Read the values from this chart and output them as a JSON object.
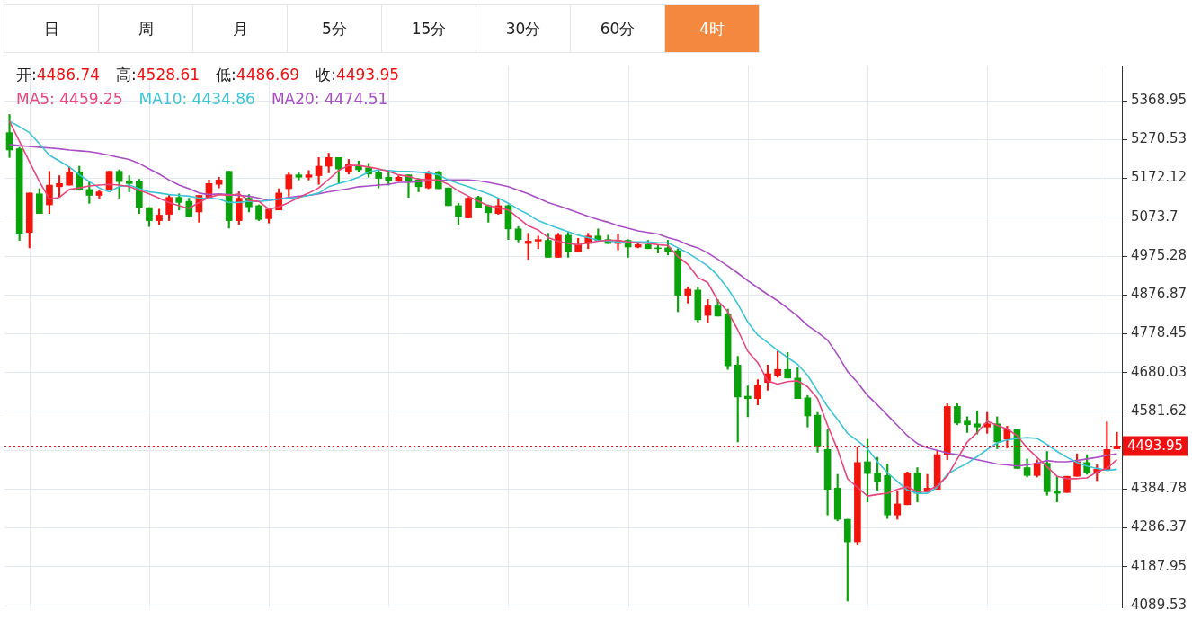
{
  "chart_data": {
    "type": "candlestick",
    "categories": [
      null,
      null,
      null,
      null,
      null,
      null,
      null,
      null,
      null,
      null,
      null,
      null,
      null,
      null,
      null,
      null,
      null,
      null,
      null,
      null,
      null,
      null,
      null,
      null,
      null,
      null,
      null,
      null,
      null,
      null,
      null,
      null,
      null,
      null,
      null,
      null,
      null,
      null,
      null,
      null,
      null,
      null,
      null,
      null,
      null,
      null,
      null,
      null,
      null,
      null,
      null,
      null,
      null,
      null,
      null,
      null,
      null,
      null,
      null,
      null,
      null,
      null,
      null,
      null,
      null,
      null,
      null,
      null,
      null,
      null,
      null,
      null,
      null,
      null,
      null,
      null,
      null,
      null,
      null,
      null,
      null,
      null,
      null,
      null,
      null,
      null,
      null,
      null,
      null,
      null,
      null,
      null,
      null,
      null,
      null,
      null,
      null,
      null,
      null,
      null,
      null,
      null,
      null,
      null,
      null,
      null,
      null,
      null,
      null,
      null,
      null,
      null
    ],
    "ohlc": [
      [
        5288,
        5334,
        5225,
        5244
      ],
      [
        5247,
        5251,
        5015,
        5033
      ],
      [
        5035,
        5135,
        4996,
        5135
      ],
      [
        5133,
        5146,
        5083,
        5083
      ],
      [
        5105,
        5190,
        5083,
        5155
      ],
      [
        5151,
        5179,
        5124,
        5159
      ],
      [
        5155,
        5201,
        5155,
        5188
      ],
      [
        5188,
        5203,
        5142,
        5142
      ],
      [
        5144,
        5164,
        5109,
        5129
      ],
      [
        5129,
        5142,
        5122,
        5138
      ],
      [
        5144,
        5190,
        5144,
        5190
      ],
      [
        5190,
        5194,
        5122,
        5164
      ],
      [
        5166,
        5179,
        5138,
        5159
      ],
      [
        5164,
        5170,
        5083,
        5098
      ],
      [
        5098,
        5098,
        5050,
        5065
      ],
      [
        5065,
        5094,
        5055,
        5079
      ],
      [
        5081,
        5131,
        5065,
        5124
      ],
      [
        5124,
        5133,
        5092,
        5111
      ],
      [
        5114,
        5122,
        5074,
        5076
      ],
      [
        5087,
        5129,
        5061,
        5129
      ],
      [
        5124,
        5168,
        5124,
        5159
      ],
      [
        5157,
        5175,
        5148,
        5168
      ],
      [
        5190,
        5190,
        5046,
        5065
      ],
      [
        5065,
        5138,
        5055,
        5122
      ],
      [
        5122,
        5131,
        5087,
        5100
      ],
      [
        5103,
        5105,
        5065,
        5068
      ],
      [
        5070,
        5094,
        5059,
        5094
      ],
      [
        5092,
        5146,
        5092,
        5135
      ],
      [
        5146,
        5186,
        5127,
        5181
      ],
      [
        5181,
        5186,
        5168,
        5175
      ],
      [
        5175,
        5192,
        5168,
        5181
      ],
      [
        5179,
        5225,
        5157,
        5203
      ],
      [
        5203,
        5236,
        5186,
        5225
      ],
      [
        5225,
        5225,
        5159,
        5196
      ],
      [
        5188,
        5220,
        5183,
        5207
      ],
      [
        5203,
        5216,
        5190,
        5194
      ],
      [
        5199,
        5210,
        5175,
        5183
      ],
      [
        5188,
        5192,
        5148,
        5172
      ],
      [
        5175,
        5192,
        5155,
        5166
      ],
      [
        5166,
        5179,
        5166,
        5175
      ],
      [
        5181,
        5181,
        5124,
        5164
      ],
      [
        5168,
        5172,
        5138,
        5151
      ],
      [
        5148,
        5190,
        5146,
        5186
      ],
      [
        5188,
        5190,
        5146,
        5146
      ],
      [
        5148,
        5148,
        5103,
        5103
      ],
      [
        5103,
        5109,
        5055,
        5076
      ],
      [
        5072,
        5124,
        5072,
        5122
      ],
      [
        5124,
        5127,
        5098,
        5098
      ],
      [
        5103,
        5105,
        5061,
        5085
      ],
      [
        5083,
        5120,
        5081,
        5103
      ],
      [
        5103,
        5105,
        5017,
        5044
      ],
      [
        5044,
        5050,
        5011,
        5017
      ],
      [
        5007,
        5033,
        4967,
        5013
      ],
      [
        5013,
        5026,
        4994,
        5017
      ],
      [
        5015,
        5033,
        4972,
        4972
      ],
      [
        4972,
        5033,
        4972,
        5028
      ],
      [
        5028,
        5037,
        4972,
        4987
      ],
      [
        4987,
        5020,
        4987,
        5004
      ],
      [
        5007,
        5033,
        4994,
        5026
      ],
      [
        5026,
        5044,
        5015,
        5015
      ],
      [
        5017,
        5028,
        5007,
        5007
      ],
      [
        5007,
        5031,
        4991,
        5015
      ],
      [
        5015,
        5017,
        4972,
        4998
      ],
      [
        4998,
        5007,
        4996,
        5004
      ],
      [
        5004,
        5015,
        4994,
        4994
      ],
      [
        4996,
        5004,
        4983,
        4994
      ],
      [
        4996,
        5015,
        4978,
        4987
      ],
      [
        4989,
        4994,
        4834,
        4876
      ],
      [
        4876,
        4897,
        4856,
        4891
      ],
      [
        4889,
        4897,
        4808,
        4814
      ],
      [
        4825,
        4865,
        4806,
        4849
      ],
      [
        4849,
        4865,
        4823,
        4823
      ],
      [
        4828,
        4841,
        4688,
        4697
      ],
      [
        4699,
        4721,
        4504,
        4618
      ],
      [
        4620,
        4646,
        4568,
        4614
      ],
      [
        4614,
        4662,
        4598,
        4649
      ],
      [
        4655,
        4699,
        4635,
        4677
      ],
      [
        4673,
        4734,
        4668,
        4688
      ],
      [
        4688,
        4731,
        4666,
        4666
      ],
      [
        4666,
        4692,
        4614,
        4614
      ],
      [
        4616,
        4622,
        4542,
        4570
      ],
      [
        4572,
        4579,
        4478,
        4494
      ],
      [
        4485,
        4535,
        4319,
        4384
      ],
      [
        4387,
        4422,
        4304,
        4308
      ],
      [
        4308,
        4308,
        4101,
        4251
      ],
      [
        4251,
        4491,
        4243,
        4452
      ],
      [
        4454,
        4511,
        4352,
        4424
      ],
      [
        4426,
        4465,
        4382,
        4404
      ],
      [
        4419,
        4448,
        4310,
        4319
      ],
      [
        4319,
        4380,
        4308,
        4347
      ],
      [
        4345,
        4428,
        4345,
        4426
      ],
      [
        4426,
        4439,
        4352,
        4374
      ],
      [
        4378,
        4422,
        4378,
        4387
      ],
      [
        4384,
        4483,
        4384,
        4472
      ],
      [
        4472,
        4601,
        4459,
        4594
      ],
      [
        4594,
        4601,
        4548,
        4552
      ],
      [
        4557,
        4568,
        4528,
        4548
      ],
      [
        4550,
        4583,
        4524,
        4542
      ],
      [
        4542,
        4579,
        4526,
        4550
      ],
      [
        4550,
        4568,
        4487,
        4504
      ],
      [
        4511,
        4544,
        4489,
        4535
      ],
      [
        4535,
        4535,
        4437,
        4437
      ],
      [
        4439,
        4461,
        4415,
        4419
      ],
      [
        4419,
        4459,
        4415,
        4450
      ],
      [
        4450,
        4480,
        4369,
        4378
      ],
      [
        4380,
        4417,
        4352,
        4374
      ],
      [
        4376,
        4417,
        4376,
        4417
      ],
      [
        4417,
        4474,
        4417,
        4454
      ],
      [
        4452,
        4472,
        4422,
        4426
      ],
      [
        4426,
        4446,
        4406,
        4435
      ],
      [
        4432,
        4555,
        4432,
        4485
      ],
      [
        4486.74,
        4528.61,
        4486.69,
        4493.95
      ]
    ],
    "colors": [
      "#0aa20a",
      "#0aa20a",
      "#f4140c",
      "#0aa20a",
      "#f4140c",
      "#f4140c",
      "#f4140c",
      "#0aa20a",
      "#0aa20a",
      "#f4140c",
      "#f4140c",
      "#0aa20a",
      "#0aa20a",
      "#0aa20a",
      "#0aa20a",
      "#f4140c",
      "#f4140c",
      "#0aa20a",
      "#0aa20a",
      "#f4140c",
      "#f4140c",
      "#f4140c",
      "#0aa20a",
      "#f4140c",
      "#0aa20a",
      "#0aa20a",
      "#f4140c",
      "#f4140c",
      "#f4140c",
      "#0aa20a",
      "#f4140c",
      "#f4140c",
      "#f4140c",
      "#0aa20a",
      "#f4140c",
      "#0aa20a",
      "#0aa20a",
      "#0aa20a",
      "#0aa20a",
      "#f4140c",
      "#0aa20a",
      "#0aa20a",
      "#f4140c",
      "#0aa20a",
      "#0aa20a",
      "#0aa20a",
      "#f4140c",
      "#0aa20a",
      "#0aa20a",
      "#f4140c",
      "#0aa20a",
      "#0aa20a",
      "#f4140c",
      "#f4140c",
      "#0aa20a",
      "#f4140c",
      "#0aa20a",
      "#f4140c",
      "#f4140c",
      "#0aa20a",
      "#0aa20a",
      "#f4140c",
      "#0aa20a",
      "#f4140c",
      "#0aa20a",
      "#0aa20a",
      "#0aa20a",
      "#0aa20a",
      "#f4140c",
      "#0aa20a",
      "#f4140c",
      "#0aa20a",
      "#0aa20a",
      "#0aa20a",
      "#0aa20a",
      "#f4140c",
      "#f4140c",
      "#f4140c",
      "#0aa20a",
      "#0aa20a",
      "#0aa20a",
      "#0aa20a",
      "#0aa20a",
      "#0aa20a",
      "#0aa20a",
      "#f4140c",
      "#0aa20a",
      "#0aa20a",
      "#0aa20a",
      "#f4140c",
      "#f4140c",
      "#0aa20a",
      "#f4140c",
      "#f4140c",
      "#f4140c",
      "#0aa20a",
      "#0aa20a",
      "#0aa20a",
      "#f4140c",
      "#0aa20a",
      "#f4140c",
      "#0aa20a",
      "#0aa20a",
      "#f4140c",
      "#0aa20a",
      "#0aa20a",
      "#f4140c",
      "#f4140c",
      "#0aa20a",
      "#f4140c",
      "#f4140c",
      "#f4140c"
    ],
    "series": [
      {
        "name": "MA5: 4459.25",
        "type": "line",
        "color": "#e8467c",
        "values": [
          5317,
          5266,
          5214,
          5164,
          5120,
          5124,
          5144,
          5148,
          5153,
          5155,
          5157,
          5155,
          5151,
          5142,
          5133,
          5122,
          5111,
          5103,
          5096,
          5111,
          5124,
          5131,
          5129,
          5133,
          5116,
          5114,
          5094,
          5100,
          5111,
          5124,
          5135,
          5148,
          5170,
          5192,
          5205,
          5205,
          5201,
          5196,
          5190,
          5181,
          5177,
          5170,
          5168,
          5168,
          5157,
          5140,
          5127,
          5114,
          5103,
          5098,
          5092,
          5072,
          5052,
          5041,
          5022,
          5013,
          5007,
          5004,
          5009,
          5013,
          5015,
          5015,
          5011,
          5009,
          5007,
          5004,
          5002,
          4974,
          4954,
          4921,
          4908,
          4862,
          4834,
          4788,
          4734,
          4705,
          4659,
          4651,
          4657,
          4659,
          4644,
          4614,
          4546,
          4485,
          4411,
          4389,
          4367,
          4371,
          4374,
          4384,
          4391,
          4378,
          4380,
          4393,
          4417,
          4461,
          4504,
          4528,
          4557,
          4546,
          4537,
          4520,
          4489,
          4465,
          4441,
          4417,
          4411,
          4411,
          4413,
          4428,
          4437,
          4459.25
        ]
      },
      {
        "name": "MA10: 4434.86",
        "type": "line",
        "color": "#3cc4d8",
        "values": [
          5317,
          5303,
          5288,
          5260,
          5231,
          5216,
          5201,
          5181,
          5164,
          5148,
          5138,
          5151,
          5155,
          5146,
          5138,
          5135,
          5131,
          5129,
          5127,
          5122,
          5122,
          5120,
          5111,
          5111,
          5114,
          5114,
          5116,
          5120,
          5122,
          5124,
          5129,
          5135,
          5151,
          5159,
          5166,
          5175,
          5188,
          5194,
          5192,
          5190,
          5190,
          5188,
          5186,
          5181,
          5168,
          5159,
          5151,
          5142,
          5133,
          5122,
          5109,
          5094,
          5081,
          5065,
          5055,
          5046,
          5037,
          5028,
          5022,
          5015,
          5013,
          5011,
          5011,
          5011,
          5011,
          5009,
          5009,
          4996,
          4983,
          4967,
          4950,
          4926,
          4893,
          4854,
          4808,
          4775,
          4756,
          4736,
          4718,
          4701,
          4673,
          4633,
          4594,
          4561,
          4526,
          4507,
          4487,
          4454,
          4426,
          4404,
          4382,
          4374,
          4374,
          4389,
          4422,
          4437,
          4450,
          4467,
          4485,
          4502,
          4509,
          4513,
          4515,
          4513,
          4498,
          4480,
          4465,
          4452,
          4443,
          4437,
          4432,
          4434.86
        ]
      },
      {
        "name": "MA20: 4474.51",
        "type": "line",
        "color": "#a94ec4",
        "values": [
          5258,
          5255,
          5253,
          5251,
          5249,
          5247,
          5244,
          5242,
          5240,
          5236,
          5231,
          5225,
          5220,
          5210,
          5196,
          5183,
          5168,
          5155,
          5146,
          5135,
          5131,
          5133,
          5131,
          5129,
          5127,
          5122,
          5116,
          5120,
          5124,
          5127,
          5129,
          5133,
          5138,
          5142,
          5146,
          5151,
          5153,
          5155,
          5157,
          5162,
          5162,
          5164,
          5166,
          5166,
          5168,
          5168,
          5168,
          5166,
          5162,
          5157,
          5151,
          5142,
          5133,
          5122,
          5111,
          5103,
          5094,
          5085,
          5076,
          5068,
          5061,
          5052,
          5046,
          5039,
          5035,
          5031,
          5022,
          5015,
          5004,
          4996,
          4983,
          4967,
          4950,
          4932,
          4913,
          4895,
          4878,
          4862,
          4843,
          4823,
          4799,
          4782,
          4762,
          4725,
          4683,
          4655,
          4622,
          4598,
          4572,
          4546,
          4520,
          4500,
          4489,
          4483,
          4476,
          4472,
          4465,
          4459,
          4454,
          4448,
          4446,
          4443,
          4446,
          4450,
          4457,
          4454,
          4454,
          4457,
          4461,
          4465,
          4470,
          4474.51
        ]
      }
    ],
    "ylim": [
      4085,
      5458
    ],
    "yticks": [
      4089.53,
      4187.95,
      4286.37,
      4384.78,
      {
        "value": 4483.2,
        "label": null
      },
      4581.62,
      4680.03,
      4778.45,
      4876.87,
      4975.28,
      5073.7,
      5172.12,
      5270.53,
      5368.95
    ],
    "grid": true,
    "legend": "top left",
    "tick_labels": "y",
    "marker": "none",
    "line_style": "solid",
    "ref_lines": [
      {
        "axis": "y",
        "value": 4493.95,
        "label": "4493.95",
        "color": "#f01010",
        "line_style": "dotted"
      }
    ],
    "annotations": [
      "日",
      "周",
      "月",
      "5分",
      "15分",
      "30分",
      "60分",
      "4时",
      "开:4486.74",
      "高:4528.61",
      "低:4486.69",
      "收:4493.95"
    ]
  }
}
